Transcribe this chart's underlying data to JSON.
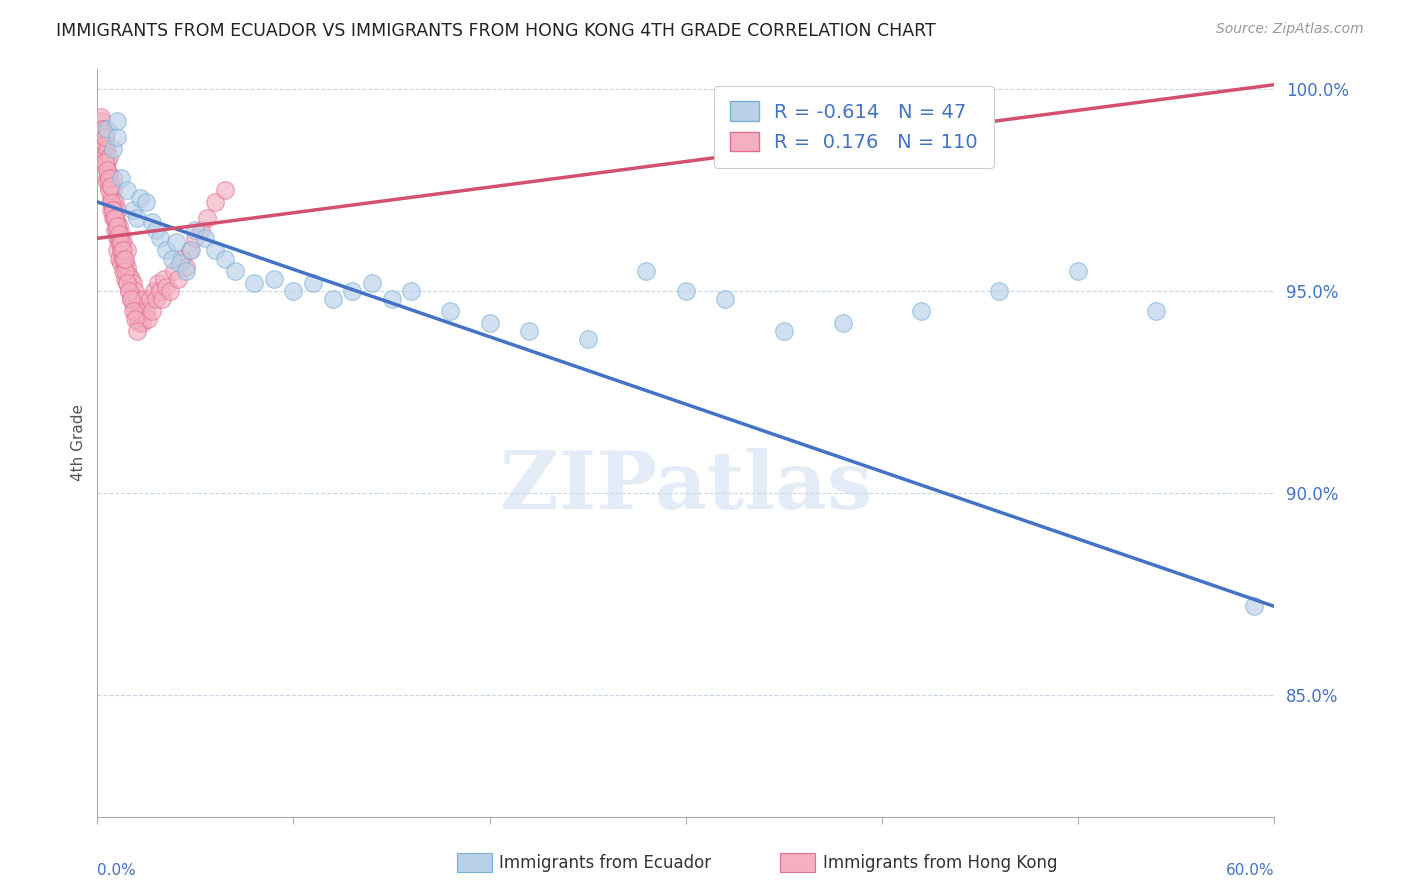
{
  "title": "IMMIGRANTS FROM ECUADOR VS IMMIGRANTS FROM HONG KONG 4TH GRADE CORRELATION CHART",
  "source": "Source: ZipAtlas.com",
  "ylabel": "4th Grade",
  "watermark": "ZIPatlas",
  "xlim": [
    0.0,
    0.6
  ],
  "ylim": [
    0.82,
    1.005
  ],
  "yticks": [
    0.85,
    0.9,
    0.95,
    1.0
  ],
  "yticklabels": [
    "85.0%",
    "90.0%",
    "95.0%",
    "100.0%"
  ],
  "ecuador_color": "#b8d0e8",
  "ecuador_edge": "#7aafd4",
  "hongkong_color": "#f4afc0",
  "hongkong_edge": "#e07090",
  "ecuador_R": -0.614,
  "ecuador_N": 47,
  "hongkong_R": 0.176,
  "hongkong_N": 110,
  "trendline_ecuador_color": "#4472c4",
  "trendline_hongkong_color": "#d45070",
  "background_color": "#ffffff",
  "grid_color": "#c8d8e8",
  "title_color": "#222222",
  "axis_label_color": "#555555",
  "tick_label_color": "#4472c4",
  "ecuador_scatter_x": [
    0.005,
    0.008,
    0.01,
    0.01,
    0.012,
    0.015,
    0.018,
    0.02,
    0.022,
    0.025,
    0.028,
    0.03,
    0.032,
    0.035,
    0.038,
    0.04,
    0.042,
    0.045,
    0.048,
    0.05,
    0.055,
    0.06,
    0.065,
    0.07,
    0.08,
    0.09,
    0.1,
    0.11,
    0.12,
    0.13,
    0.14,
    0.15,
    0.16,
    0.18,
    0.2,
    0.22,
    0.25,
    0.28,
    0.3,
    0.32,
    0.35,
    0.38,
    0.42,
    0.46,
    0.5,
    0.54,
    0.59
  ],
  "ecuador_scatter_y": [
    0.99,
    0.985,
    0.988,
    0.992,
    0.978,
    0.975,
    0.97,
    0.968,
    0.973,
    0.972,
    0.967,
    0.965,
    0.963,
    0.96,
    0.958,
    0.962,
    0.957,
    0.955,
    0.96,
    0.965,
    0.963,
    0.96,
    0.958,
    0.955,
    0.952,
    0.953,
    0.95,
    0.952,
    0.948,
    0.95,
    0.952,
    0.948,
    0.95,
    0.945,
    0.942,
    0.94,
    0.938,
    0.955,
    0.95,
    0.948,
    0.94,
    0.942,
    0.945,
    0.95,
    0.955,
    0.945,
    0.872
  ],
  "hongkong_scatter_x": [
    0.001,
    0.002,
    0.002,
    0.003,
    0.003,
    0.003,
    0.004,
    0.004,
    0.004,
    0.005,
    0.005,
    0.005,
    0.005,
    0.006,
    0.006,
    0.006,
    0.007,
    0.007,
    0.007,
    0.008,
    0.008,
    0.008,
    0.008,
    0.009,
    0.009,
    0.009,
    0.01,
    0.01,
    0.01,
    0.01,
    0.011,
    0.011,
    0.011,
    0.012,
    0.012,
    0.012,
    0.013,
    0.013,
    0.013,
    0.014,
    0.014,
    0.015,
    0.015,
    0.015,
    0.016,
    0.016,
    0.017,
    0.017,
    0.018,
    0.018,
    0.019,
    0.019,
    0.02,
    0.02,
    0.021,
    0.022,
    0.023,
    0.024,
    0.025,
    0.026,
    0.027,
    0.028,
    0.029,
    0.03,
    0.031,
    0.032,
    0.033,
    0.034,
    0.035,
    0.037,
    0.039,
    0.041,
    0.043,
    0.045,
    0.047,
    0.05,
    0.053,
    0.056,
    0.06,
    0.065,
    0.002,
    0.003,
    0.004,
    0.005,
    0.006,
    0.007,
    0.008,
    0.009,
    0.01,
    0.011,
    0.012,
    0.013,
    0.014,
    0.015,
    0.016,
    0.017,
    0.018,
    0.019,
    0.02,
    0.008,
    0.009,
    0.01,
    0.011,
    0.012,
    0.013,
    0.014,
    0.004,
    0.005,
    0.006,
    0.007
  ],
  "hongkong_scatter_y": [
    0.99,
    0.992,
    0.988,
    0.985,
    0.987,
    0.99,
    0.983,
    0.988,
    0.986,
    0.98,
    0.985,
    0.982,
    0.978,
    0.976,
    0.979,
    0.983,
    0.97,
    0.973,
    0.976,
    0.968,
    0.972,
    0.975,
    0.978,
    0.965,
    0.968,
    0.972,
    0.96,
    0.963,
    0.967,
    0.97,
    0.958,
    0.962,
    0.966,
    0.957,
    0.96,
    0.964,
    0.955,
    0.958,
    0.962,
    0.953,
    0.957,
    0.952,
    0.956,
    0.96,
    0.95,
    0.954,
    0.948,
    0.953,
    0.947,
    0.952,
    0.945,
    0.95,
    0.943,
    0.948,
    0.942,
    0.945,
    0.942,
    0.948,
    0.945,
    0.943,
    0.948,
    0.945,
    0.95,
    0.948,
    0.952,
    0.95,
    0.948,
    0.953,
    0.951,
    0.95,
    0.955,
    0.953,
    0.958,
    0.956,
    0.96,
    0.963,
    0.965,
    0.968,
    0.972,
    0.975,
    0.993,
    0.99,
    0.988,
    0.977,
    0.975,
    0.972,
    0.97,
    0.968,
    0.965,
    0.963,
    0.96,
    0.958,
    0.955,
    0.952,
    0.95,
    0.948,
    0.945,
    0.943,
    0.94,
    0.97,
    0.968,
    0.966,
    0.964,
    0.962,
    0.96,
    0.958,
    0.982,
    0.98,
    0.978,
    0.976
  ],
  "ecuador_trend_x": [
    0.0,
    0.6
  ],
  "ecuador_trend_y": [
    0.972,
    0.872
  ],
  "hongkong_trend_x": [
    0.0,
    0.6
  ],
  "hongkong_trend_y": [
    0.963,
    1.001
  ]
}
